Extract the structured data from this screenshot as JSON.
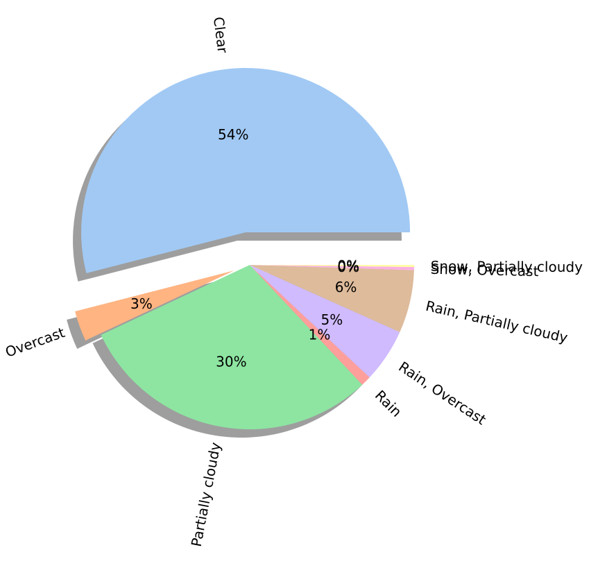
{
  "chart_data": {
    "type": "pie",
    "title": "",
    "start_angle_deg": 0,
    "direction": "counterclockwise",
    "shadow": true,
    "slices": [
      {
        "label": "Clear",
        "value": 54.0,
        "pct_label": "54%",
        "color": "#a1c9f4",
        "explode": 0.2
      },
      {
        "label": "Overcast",
        "value": 3.0,
        "pct_label": "3%",
        "color": "#ffb482",
        "explode": 0.1
      },
      {
        "label": "Partially cloudy",
        "value": 30.0,
        "pct_label": "30%",
        "color": "#8de5a1",
        "explode": 0
      },
      {
        "label": "Rain",
        "value": 1.0,
        "pct_label": "1%",
        "color": "#ff9f9b",
        "explode": 0
      },
      {
        "label": "Rain, Overcast",
        "value": 5.3,
        "pct_label": "5%",
        "color": "#d0bbff",
        "explode": 0
      },
      {
        "label": "Rain, Partially cloudy",
        "value": 6.2,
        "pct_label": "6%",
        "color": "#debb9b",
        "explode": 0
      },
      {
        "label": "Snow, Overcast",
        "value": 0.3,
        "pct_label": "0%",
        "color": "#fab0e4",
        "explode": 0
      },
      {
        "label": "Snow, Partially cloudy",
        "value": 0.2,
        "pct_label": "0%",
        "color": "#fffea3",
        "explode": 0
      }
    ]
  }
}
